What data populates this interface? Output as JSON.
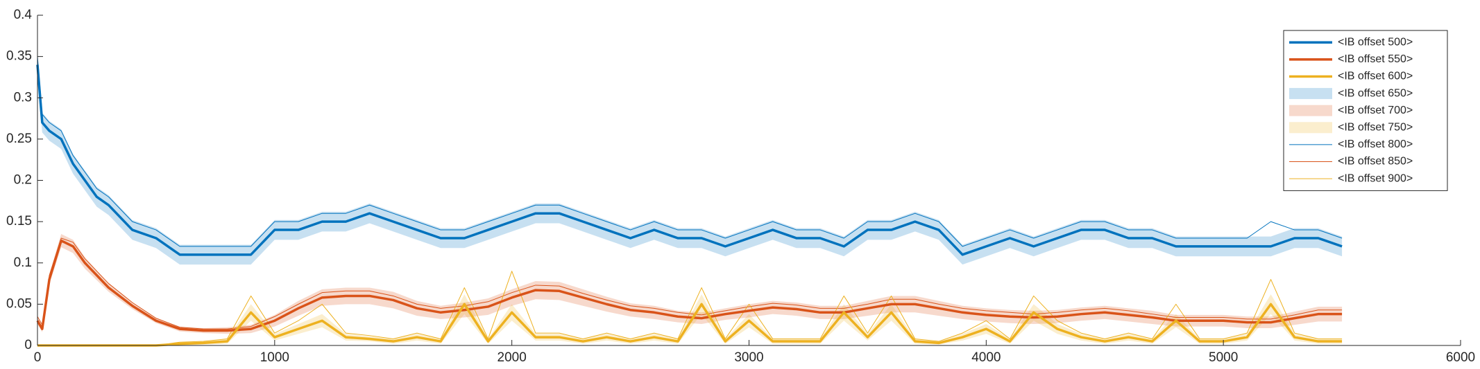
{
  "chart_data": {
    "type": "line",
    "x": [
      0,
      20,
      50,
      100,
      150,
      200,
      250,
      300,
      400,
      500,
      600,
      700,
      800,
      900,
      1000,
      1100,
      1200,
      1300,
      1400,
      1500,
      1600,
      1700,
      1800,
      1900,
      2000,
      2100,
      2200,
      2300,
      2400,
      2500,
      2600,
      2700,
      2800,
      2900,
      3000,
      3100,
      3200,
      3300,
      3400,
      3500,
      3600,
      3700,
      3800,
      3900,
      4000,
      4100,
      4200,
      4300,
      4400,
      4500,
      4600,
      4700,
      4800,
      4900,
      5000,
      5100,
      5200,
      5300,
      5400,
      5500
    ],
    "xlim": [
      0,
      6000
    ],
    "xticks": [
      0,
      1000,
      2000,
      3000,
      4000,
      5000,
      6000
    ],
    "ylim": [
      0,
      0.4
    ],
    "yticks": [
      0,
      0.05,
      0.1,
      0.15,
      0.2,
      0.25,
      0.3,
      0.35,
      0.4
    ],
    "legend": "upper right",
    "series": [
      {
        "name": "<IB offset 500>",
        "color": "#0072BD",
        "style": "line",
        "values": [
          0.34,
          0.27,
          0.26,
          0.25,
          0.22,
          0.2,
          0.18,
          0.17,
          0.14,
          0.13,
          0.11,
          0.11,
          0.11,
          0.11,
          0.14,
          0.14,
          0.15,
          0.15,
          0.16,
          0.15,
          0.14,
          0.13,
          0.13,
          0.14,
          0.15,
          0.16,
          0.16,
          0.15,
          0.14,
          0.13,
          0.14,
          0.13,
          0.13,
          0.12,
          0.13,
          0.14,
          0.13,
          0.13,
          0.12,
          0.14,
          0.14,
          0.15,
          0.14,
          0.11,
          0.12,
          0.13,
          0.12,
          0.13,
          0.14,
          0.14,
          0.13,
          0.13,
          0.12,
          0.12,
          0.12,
          0.12,
          0.12,
          0.13,
          0.13,
          0.12
        ]
      },
      {
        "name": "<IB offset 550>",
        "color": "#D95319",
        "style": "line",
        "values": [
          0.03,
          0.02,
          0.08,
          0.127,
          0.12,
          0.1,
          0.085,
          0.07,
          0.048,
          0.03,
          0.02,
          0.018,
          0.018,
          0.02,
          0.03,
          0.045,
          0.058,
          0.06,
          0.06,
          0.055,
          0.045,
          0.04,
          0.043,
          0.047,
          0.058,
          0.067,
          0.066,
          0.058,
          0.05,
          0.043,
          0.04,
          0.035,
          0.033,
          0.038,
          0.042,
          0.046,
          0.044,
          0.04,
          0.04,
          0.045,
          0.05,
          0.05,
          0.045,
          0.04,
          0.037,
          0.035,
          0.034,
          0.035,
          0.038,
          0.04,
          0.037,
          0.034,
          0.03,
          0.03,
          0.03,
          0.028,
          0.028,
          0.033,
          0.038,
          0.038
        ]
      },
      {
        "name": "<IB offset 600>",
        "color": "#EDB120",
        "style": "line",
        "values": [
          0,
          0,
          0,
          0,
          0,
          0,
          0,
          0,
          0,
          0,
          0.002,
          0.003,
          0.005,
          0.04,
          0.01,
          0.02,
          0.03,
          0.01,
          0.008,
          0.005,
          0.01,
          0.005,
          0.05,
          0.005,
          0.04,
          0.01,
          0.01,
          0.005,
          0.01,
          0.005,
          0.01,
          0.005,
          0.05,
          0.005,
          0.03,
          0.005,
          0.005,
          0.005,
          0.04,
          0.01,
          0.04,
          0.005,
          0.003,
          0.01,
          0.02,
          0.005,
          0.04,
          0.02,
          0.01,
          0.005,
          0.01,
          0.005,
          0.03,
          0.005,
          0.005,
          0.01,
          0.05,
          0.01,
          0.005,
          0.005
        ]
      },
      {
        "name": "<IB offset 650>",
        "color": "#0072BD",
        "style": "band",
        "values": [
          0.012,
          0.012,
          0.012,
          0.012,
          0.012,
          0.012,
          0.012,
          0.012,
          0.012,
          0.012,
          0.012,
          0.012,
          0.012,
          0.012,
          0.012,
          0.012,
          0.012,
          0.012,
          0.012,
          0.012,
          0.012,
          0.012,
          0.012,
          0.012,
          0.012,
          0.012,
          0.012,
          0.012,
          0.012,
          0.012,
          0.012,
          0.012,
          0.012,
          0.012,
          0.012,
          0.012,
          0.012,
          0.012,
          0.012,
          0.012,
          0.012,
          0.012,
          0.012,
          0.012,
          0.012,
          0.012,
          0.012,
          0.012,
          0.012,
          0.012,
          0.012,
          0.012,
          0.012,
          0.012,
          0.012,
          0.012,
          0.012,
          0.012,
          0.012,
          0.012
        ]
      },
      {
        "name": "<IB offset 700>",
        "color": "#D95319",
        "style": "band",
        "values": [
          0.004,
          0.004,
          0.006,
          0.008,
          0.008,
          0.007,
          0.006,
          0.005,
          0.004,
          0.003,
          0.003,
          0.003,
          0.004,
          0.005,
          0.007,
          0.009,
          0.01,
          0.01,
          0.01,
          0.01,
          0.009,
          0.008,
          0.009,
          0.01,
          0.01,
          0.011,
          0.011,
          0.01,
          0.009,
          0.008,
          0.008,
          0.007,
          0.007,
          0.007,
          0.008,
          0.008,
          0.008,
          0.008,
          0.008,
          0.009,
          0.01,
          0.01,
          0.009,
          0.008,
          0.008,
          0.008,
          0.008,
          0.008,
          0.008,
          0.008,
          0.008,
          0.008,
          0.007,
          0.007,
          0.007,
          0.007,
          0.007,
          0.008,
          0.009,
          0.009
        ]
      },
      {
        "name": "<IB offset 750>",
        "color": "#EDB120",
        "style": "band",
        "values": [
          0,
          0,
          0,
          0,
          0,
          0,
          0,
          0,
          0,
          0,
          0.002,
          0.002,
          0.003,
          0.01,
          0.004,
          0.006,
          0.008,
          0.004,
          0.003,
          0.003,
          0.004,
          0.003,
          0.012,
          0.003,
          0.01,
          0.004,
          0.004,
          0.003,
          0.004,
          0.003,
          0.004,
          0.003,
          0.012,
          0.003,
          0.008,
          0.003,
          0.003,
          0.003,
          0.01,
          0.004,
          0.01,
          0.003,
          0.002,
          0.004,
          0.006,
          0.003,
          0.01,
          0.006,
          0.004,
          0.003,
          0.004,
          0.003,
          0.008,
          0.003,
          0.003,
          0.004,
          0.012,
          0.004,
          0.003,
          0.003
        ]
      },
      {
        "name": "<IB offset 800>",
        "color": "#0072BD",
        "style": "thin",
        "values": [
          0.35,
          0.28,
          0.27,
          0.26,
          0.23,
          0.21,
          0.19,
          0.18,
          0.15,
          0.14,
          0.12,
          0.12,
          0.12,
          0.12,
          0.15,
          0.15,
          0.16,
          0.16,
          0.17,
          0.16,
          0.15,
          0.14,
          0.14,
          0.15,
          0.16,
          0.17,
          0.17,
          0.16,
          0.15,
          0.14,
          0.15,
          0.14,
          0.14,
          0.13,
          0.14,
          0.15,
          0.14,
          0.14,
          0.13,
          0.15,
          0.15,
          0.16,
          0.15,
          0.12,
          0.13,
          0.14,
          0.13,
          0.14,
          0.15,
          0.15,
          0.14,
          0.14,
          0.13,
          0.13,
          0.13,
          0.13,
          0.15,
          0.14,
          0.14,
          0.13
        ]
      },
      {
        "name": "<IB offset 850>",
        "color": "#D95319",
        "style": "thin",
        "values": [
          0.035,
          0.025,
          0.085,
          0.13,
          0.125,
          0.105,
          0.09,
          0.075,
          0.052,
          0.033,
          0.022,
          0.02,
          0.02,
          0.023,
          0.035,
          0.05,
          0.064,
          0.066,
          0.066,
          0.06,
          0.05,
          0.045,
          0.048,
          0.053,
          0.064,
          0.073,
          0.072,
          0.063,
          0.055,
          0.048,
          0.045,
          0.04,
          0.037,
          0.042,
          0.047,
          0.051,
          0.049,
          0.045,
          0.045,
          0.05,
          0.056,
          0.056,
          0.05,
          0.045,
          0.042,
          0.04,
          0.038,
          0.04,
          0.043,
          0.045,
          0.042,
          0.038,
          0.034,
          0.034,
          0.034,
          0.032,
          0.032,
          0.037,
          0.043,
          0.043
        ]
      },
      {
        "name": "<IB offset 900>",
        "color": "#EDB120",
        "style": "thin",
        "values": [
          0,
          0,
          0,
          0,
          0,
          0,
          0,
          0,
          0,
          0,
          0.004,
          0.005,
          0.008,
          0.06,
          0.015,
          0.03,
          0.05,
          0.015,
          0.012,
          0.008,
          0.015,
          0.008,
          0.07,
          0.008,
          0.09,
          0.015,
          0.015,
          0.008,
          0.015,
          0.008,
          0.015,
          0.008,
          0.07,
          0.008,
          0.05,
          0.008,
          0.008,
          0.008,
          0.06,
          0.015,
          0.06,
          0.008,
          0.005,
          0.015,
          0.03,
          0.008,
          0.06,
          0.03,
          0.015,
          0.008,
          0.015,
          0.008,
          0.05,
          0.008,
          0.008,
          0.015,
          0.08,
          0.015,
          0.008,
          0.008
        ]
      }
    ]
  }
}
